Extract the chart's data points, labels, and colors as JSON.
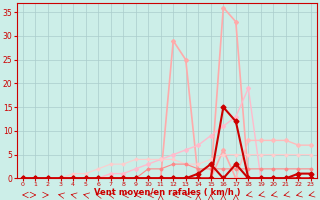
{
  "background_color": "#cceee8",
  "grid_color": "#aacccc",
  "x_label": "Vent moyen/en rafales ( km/h )",
  "x_ticks": [
    0,
    1,
    2,
    3,
    4,
    5,
    6,
    7,
    8,
    9,
    10,
    11,
    12,
    13,
    14,
    15,
    16,
    17,
    18,
    19,
    20,
    21,
    22,
    23
  ],
  "y_ticks": [
    0,
    5,
    10,
    15,
    20,
    25,
    30,
    35
  ],
  "xlim": [
    -0.5,
    23.5
  ],
  "ylim": [
    0,
    37
  ],
  "series": [
    {
      "name": "rafales_big",
      "x": [
        0,
        1,
        2,
        3,
        4,
        5,
        6,
        7,
        8,
        9,
        10,
        11,
        12,
        13,
        14,
        15,
        16,
        17,
        18,
        19,
        20,
        21,
        22,
        23
      ],
      "y": [
        0,
        0,
        0,
        0,
        0,
        0,
        0,
        0,
        0,
        0,
        0,
        0,
        0,
        0,
        0,
        0,
        36,
        33,
        0,
        0,
        0,
        0,
        0,
        0
      ],
      "color": "#ffaaaa",
      "lw": 1.2,
      "marker": "D",
      "ms": 2.0
    },
    {
      "name": "rafales_mid",
      "x": [
        0,
        1,
        2,
        3,
        4,
        5,
        6,
        7,
        8,
        9,
        10,
        11,
        12,
        13,
        14,
        15,
        16,
        17,
        18,
        19,
        20,
        21,
        22,
        23
      ],
      "y": [
        0,
        0,
        0,
        0,
        0,
        0,
        0,
        0,
        0,
        0,
        0,
        0,
        29,
        25,
        0,
        0,
        6,
        0,
        0,
        0,
        0,
        0,
        0,
        0
      ],
      "color": "#ffaaaa",
      "lw": 1.2,
      "marker": "D",
      "ms": 2.0
    },
    {
      "name": "linear_pale",
      "x": [
        0,
        1,
        2,
        3,
        4,
        5,
        6,
        7,
        8,
        9,
        10,
        11,
        12,
        13,
        14,
        15,
        16,
        17,
        18,
        19,
        20,
        21,
        22,
        23
      ],
      "y": [
        0,
        0,
        0,
        0,
        0,
        0,
        0,
        1,
        1,
        2,
        3,
        4,
        5,
        6,
        7,
        9,
        11,
        13,
        19,
        0,
        0,
        0,
        0,
        0
      ],
      "color": "#ffbbcc",
      "lw": 1.0,
      "marker": "D",
      "ms": 2.0
    },
    {
      "name": "flat_medium",
      "x": [
        0,
        1,
        2,
        3,
        4,
        5,
        6,
        7,
        8,
        9,
        10,
        11,
        12,
        13,
        14,
        15,
        16,
        17,
        18,
        19,
        20,
        21,
        22,
        23
      ],
      "y": [
        0,
        0,
        0,
        0,
        0,
        0,
        0,
        0,
        0,
        0,
        0,
        0,
        0,
        0,
        0,
        0,
        0,
        0,
        8,
        8,
        8,
        8,
        7,
        7
      ],
      "color": "#ffbbbb",
      "lw": 1.0,
      "marker": "D",
      "ms": 2.0
    },
    {
      "name": "triangle_low",
      "x": [
        0,
        1,
        2,
        3,
        4,
        5,
        6,
        7,
        8,
        9,
        10,
        11,
        12,
        13,
        14,
        15,
        16,
        17,
        18,
        19,
        20,
        21,
        22,
        23
      ],
      "y": [
        0,
        0,
        0,
        0,
        1,
        1,
        2,
        3,
        3,
        4,
        4,
        4,
        4,
        3,
        3,
        4,
        5,
        5,
        5,
        5,
        5,
        5,
        5,
        5
      ],
      "color": "#ffcccc",
      "lw": 0.8,
      "marker": "D",
      "ms": 1.5
    },
    {
      "name": "small_triangle",
      "x": [
        0,
        1,
        2,
        3,
        4,
        5,
        6,
        7,
        8,
        9,
        10,
        11,
        12,
        13,
        14,
        15,
        16,
        17,
        18,
        19,
        20,
        21,
        22,
        23
      ],
      "y": [
        0,
        0,
        0,
        0,
        0,
        0,
        0,
        0,
        0,
        0,
        2,
        2,
        3,
        3,
        2,
        2,
        2,
        2,
        2,
        2,
        2,
        2,
        2,
        2
      ],
      "color": "#ff8888",
      "lw": 0.8,
      "marker": "D",
      "ms": 1.5
    },
    {
      "name": "dark_peak",
      "x": [
        0,
        1,
        2,
        3,
        4,
        5,
        6,
        7,
        8,
        9,
        10,
        11,
        12,
        13,
        14,
        15,
        16,
        17,
        18,
        19,
        20,
        21,
        22,
        23
      ],
      "y": [
        0,
        0,
        0,
        0,
        0,
        0,
        0,
        0,
        0,
        0,
        0,
        0,
        0,
        0,
        0,
        0,
        15,
        12,
        0,
        0,
        0,
        0,
        1,
        1
      ],
      "color": "#cc0000",
      "lw": 1.5,
      "marker": "D",
      "ms": 2.5
    },
    {
      "name": "dark_triangle",
      "x": [
        0,
        1,
        2,
        3,
        4,
        5,
        6,
        7,
        8,
        9,
        10,
        11,
        12,
        13,
        14,
        15,
        16,
        17,
        18,
        19,
        20,
        21,
        22,
        23
      ],
      "y": [
        0,
        0,
        0,
        0,
        0,
        0,
        0,
        0,
        0,
        0,
        0,
        0,
        0,
        0,
        1,
        3,
        0,
        3,
        0,
        0,
        0,
        0,
        0,
        0
      ],
      "color": "#cc0000",
      "lw": 1.5,
      "marker": "D",
      "ms": 2.5
    }
  ],
  "wind_arrows": {
    "x": [
      0,
      1,
      2,
      3,
      4,
      5,
      6,
      7,
      8,
      9,
      10,
      11,
      12,
      13,
      14,
      15,
      16,
      17,
      18,
      19,
      20,
      21,
      22,
      23
    ],
    "angles_deg": [
      270,
      90,
      90,
      225,
      225,
      225,
      225,
      225,
      270,
      270,
      270,
      180,
      270,
      270,
      180,
      180,
      180,
      180,
      315,
      315,
      315,
      315,
      315,
      315
    ]
  }
}
